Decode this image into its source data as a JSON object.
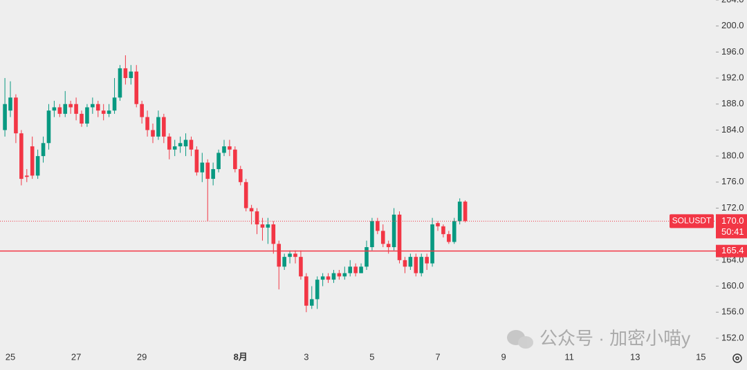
{
  "chart_data": {
    "type": "candlestick",
    "categories": [
      null,
      "25",
      null,
      null,
      null,
      null,
      null,
      null,
      null,
      null,
      null,
      null,
      null,
      "27",
      null,
      null,
      null,
      null,
      null,
      null,
      null,
      null,
      null,
      null,
      null,
      "29",
      null,
      null,
      null,
      null,
      null,
      null,
      null,
      null,
      null,
      null,
      null,
      null,
      null,
      null,
      null,
      null,
      null,
      "8月",
      null,
      null,
      null,
      null,
      null,
      null,
      null,
      null,
      null,
      null,
      null,
      "3",
      null,
      null,
      null,
      null,
      null,
      null,
      null,
      null,
      null,
      null,
      null,
      "5",
      null,
      null,
      null,
      null,
      null,
      null,
      null,
      null,
      null,
      null,
      null,
      "7",
      null,
      null,
      null,
      null,
      null,
      null,
      null,
      null,
      null,
      null,
      null,
      "9",
      null,
      null,
      null,
      null,
      null,
      null,
      null,
      null,
      null,
      null,
      null,
      "11",
      null,
      null,
      null,
      null,
      null,
      null,
      null,
      null,
      null,
      null,
      null,
      "13",
      null,
      null,
      null,
      null,
      null,
      null,
      null,
      null,
      null,
      null,
      null,
      "15",
      null,
      null
    ],
    "values": [
      [
        184,
        192,
        183,
        188
      ],
      [
        187,
        191.5,
        186,
        189
      ],
      [
        189,
        189.5,
        182,
        183.5
      ],
      [
        183.5,
        184,
        175.5,
        176.5
      ],
      [
        177,
        178,
        176,
        176.8
      ],
      [
        181.5,
        183,
        176.5,
        177
      ],
      [
        177,
        181,
        176.5,
        180
      ],
      [
        180,
        183,
        179,
        182
      ],
      [
        182,
        188,
        181,
        187
      ],
      [
        187,
        188.5,
        186,
        187.5
      ],
      [
        187.5,
        188,
        186,
        186.5
      ],
      [
        186.5,
        190,
        186,
        188
      ],
      [
        188,
        188.5,
        186.5,
        187.5
      ],
      [
        188,
        189,
        185.5,
        186.5
      ],
      [
        186.5,
        187,
        184.5,
        185
      ],
      [
        185,
        188,
        184.5,
        187.5
      ],
      [
        187.5,
        189,
        186.5,
        188
      ],
      [
        188,
        188.5,
        186,
        187
      ],
      [
        187,
        188,
        185.5,
        186.5
      ],
      [
        186.5,
        188,
        186,
        187
      ],
      [
        187,
        192,
        186.5,
        189
      ],
      [
        189,
        194,
        188.5,
        193.5
      ],
      [
        193.5,
        195.5,
        191,
        192
      ],
      [
        192,
        194,
        191,
        193
      ],
      [
        193,
        194,
        187.5,
        188
      ],
      [
        188,
        188.5,
        185,
        186
      ],
      [
        186,
        187,
        183,
        184
      ],
      [
        184,
        185,
        182,
        183
      ],
      [
        183,
        187,
        182.5,
        186
      ],
      [
        186,
        186.5,
        182,
        183
      ],
      [
        183,
        183.5,
        179.5,
        181
      ],
      [
        181,
        182.5,
        180,
        181.5
      ],
      [
        181.5,
        183,
        180.5,
        182
      ],
      [
        181.5,
        183.5,
        180,
        182.5
      ],
      [
        182.5,
        183,
        180,
        181
      ],
      [
        181,
        181.5,
        177,
        177.5
      ],
      [
        177.5,
        180.5,
        176,
        179
      ],
      [
        179,
        179.5,
        170,
        176.5
      ],
      [
        176.5,
        179,
        175.5,
        178
      ],
      [
        178,
        181,
        177.5,
        180.5
      ],
      [
        180.5,
        182.5,
        180,
        181.5
      ],
      [
        181.5,
        182.5,
        180,
        181
      ],
      [
        181,
        181.5,
        177.5,
        178
      ],
      [
        178,
        178.5,
        175.5,
        176
      ],
      [
        176,
        176.5,
        171.5,
        172
      ],
      [
        172,
        172.5,
        169.5,
        171.5
      ],
      [
        171.5,
        172,
        168,
        169.5
      ],
      [
        169.5,
        170.5,
        167,
        169
      ],
      [
        169,
        170.5,
        166.5,
        169.5
      ],
      [
        169.5,
        170,
        165,
        166.5
      ],
      [
        166.5,
        167,
        159.5,
        163
      ],
      [
        163,
        165,
        162.5,
        164.5
      ],
      [
        164.5,
        165.5,
        163.5,
        165
      ],
      [
        165,
        165.5,
        163.5,
        164.5
      ],
      [
        164.5,
        165.5,
        161,
        161.5
      ],
      [
        161.5,
        162,
        156,
        157
      ],
      [
        157,
        160,
        156.5,
        158
      ],
      [
        158,
        161.5,
        156.5,
        161
      ],
      [
        161,
        162,
        160,
        161.5
      ],
      [
        161.5,
        162,
        160.5,
        161
      ],
      [
        161,
        162.5,
        160.5,
        162
      ],
      [
        162,
        162.5,
        161,
        161.5
      ],
      [
        161.5,
        163,
        161,
        162
      ],
      [
        162,
        164,
        161.5,
        163
      ],
      [
        163,
        163.5,
        161.5,
        162
      ],
      [
        162,
        163.5,
        162,
        163
      ],
      [
        163,
        167,
        162.5,
        166
      ],
      [
        166,
        170.5,
        165.5,
        170
      ],
      [
        170,
        170.5,
        168,
        168.5
      ],
      [
        168.5,
        169.5,
        166,
        166.5
      ],
      [
        166.5,
        167,
        165,
        166
      ],
      [
        166,
        172,
        165.5,
        171
      ],
      [
        171,
        171.5,
        163.5,
        164
      ],
      [
        164,
        164.5,
        162,
        163
      ],
      [
        163,
        165,
        162.5,
        164.5
      ],
      [
        164.5,
        165,
        161.5,
        162
      ],
      [
        162,
        165,
        161.5,
        164.5
      ],
      [
        164.5,
        165,
        162.5,
        163.5
      ],
      [
        163.5,
        170.5,
        163,
        169.5
      ],
      [
        169.7,
        170,
        168.5,
        169.2
      ],
      [
        169.2,
        169.5,
        167.5,
        168
      ],
      [
        168,
        168.5,
        166.5,
        166.8
      ],
      [
        166.8,
        170.5,
        166.5,
        170
      ],
      [
        170,
        173.5,
        169.5,
        173
      ],
      [
        173,
        173.2,
        169.8,
        170
      ],
      null,
      null,
      null,
      null,
      null,
      null,
      null,
      null,
      null,
      null,
      null,
      null,
      null,
      null,
      null,
      null,
      null,
      null,
      null,
      null,
      null,
      null,
      null,
      null,
      null,
      null,
      null,
      null,
      null,
      null,
      null,
      null,
      null,
      null,
      null,
      null,
      null,
      null,
      null,
      null,
      null,
      null,
      null,
      null,
      null
    ],
    "ylim": [
      150.4,
      204.0
    ],
    "yticks": [
      {
        "value": 152,
        "label": "152.0"
      },
      {
        "value": 156,
        "label": "156.0"
      },
      {
        "value": 160,
        "label": "160.0"
      },
      {
        "value": 164,
        "label": "164.0"
      },
      {
        "value": 168,
        "label": "168.0"
      },
      {
        "value": 172,
        "label": "172.0"
      },
      {
        "value": 176,
        "label": "176.0"
      },
      {
        "value": 180,
        "label": "180.0"
      },
      {
        "value": 184,
        "label": "184.0"
      },
      {
        "value": 188,
        "label": "188.0"
      },
      {
        "value": 192,
        "label": "192.0"
      },
      {
        "value": 196,
        "label": "196.0"
      },
      {
        "value": 200,
        "label": "200.0"
      },
      {
        "value": 204,
        "label": "204.0"
      }
    ],
    "up_color": "#089981",
    "down_color": "#f23645",
    "symbol": "SOLUSDT",
    "last_price": {
      "value": 170.0,
      "label": "170.0"
    },
    "countdown": "50:41",
    "price_line": {
      "value": 165.4,
      "label": "165.4"
    },
    "line_color": "#f23645",
    "watermark": "公众号 · 加密小喵y"
  }
}
